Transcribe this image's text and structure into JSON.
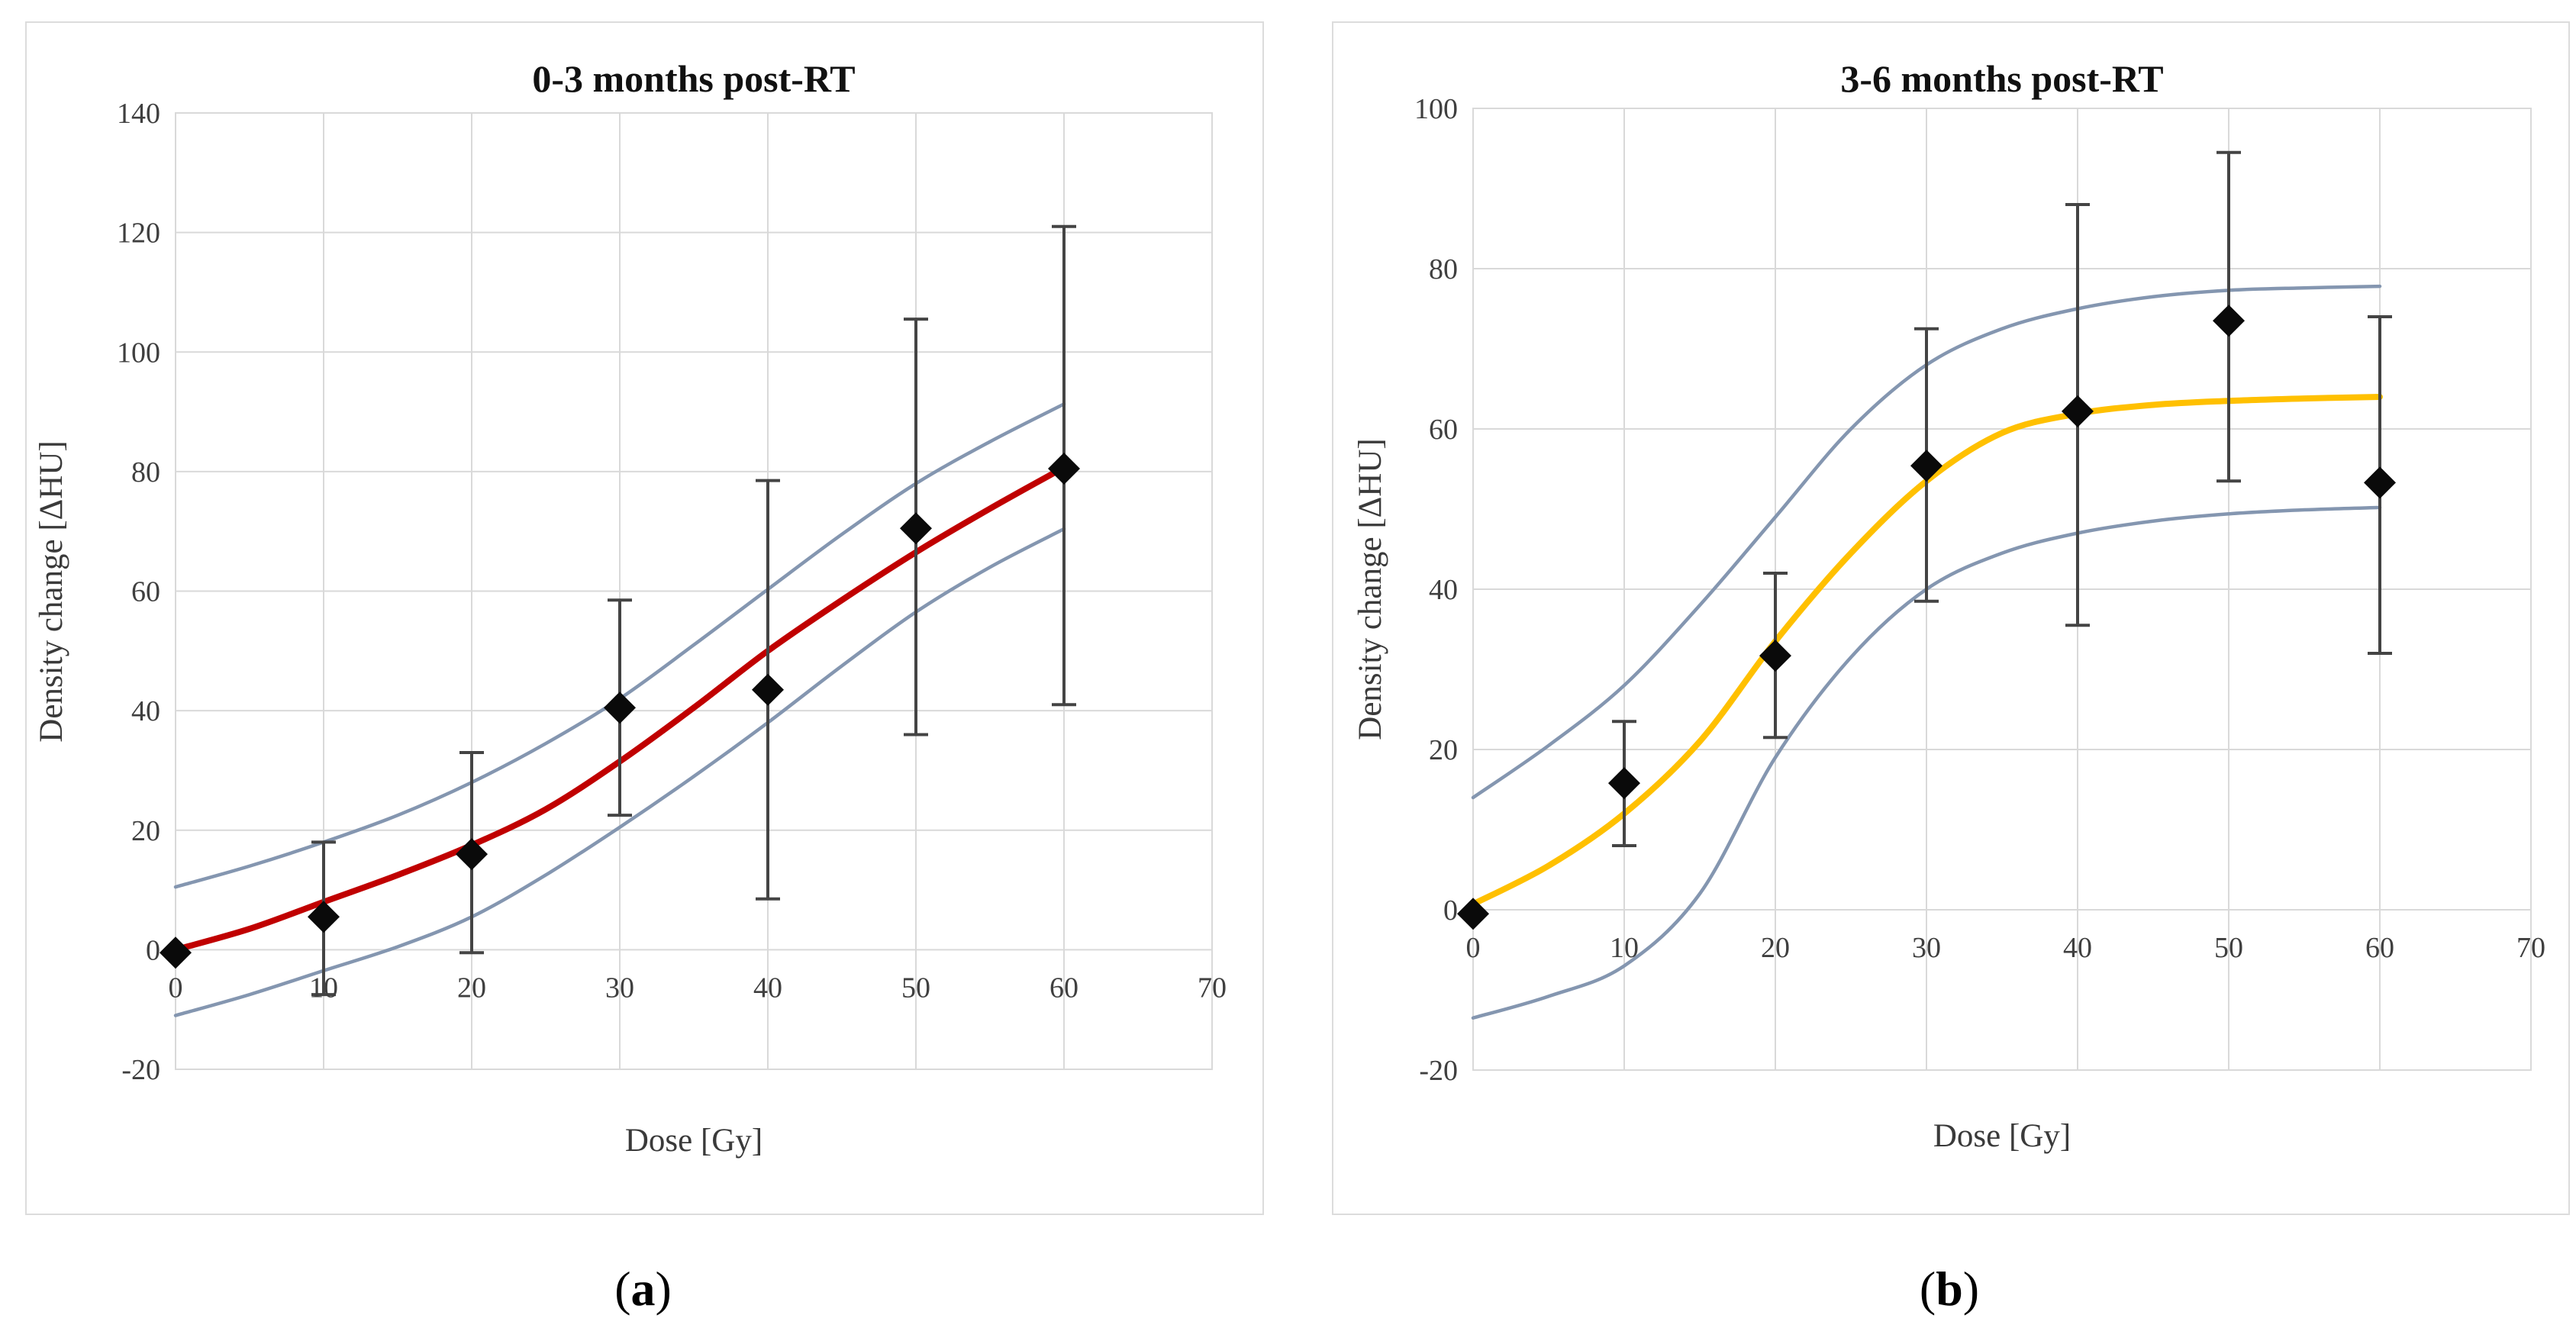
{
  "figure": {
    "captions": [
      {
        "open": "(",
        "letter": "a",
        "close": ")"
      },
      {
        "open": "(",
        "letter": "b",
        "close": ")"
      }
    ]
  },
  "chart_data": [
    {
      "type": "scatter",
      "title": "0-3 months post-RT",
      "xlabel": "Dose [Gy]",
      "ylabel": "Density change [ΔHU]",
      "xlim": [
        0,
        70
      ],
      "ylim": [
        -20,
        140
      ],
      "xticks": [
        0,
        10,
        20,
        30,
        40,
        50,
        60,
        70
      ],
      "yticks": [
        140,
        120,
        100,
        80,
        60,
        40,
        20,
        0,
        -20
      ],
      "grid": true,
      "legend_position": "none",
      "points": {
        "name": "mean density change with error bars",
        "x": [
          0,
          10,
          20,
          30,
          40,
          50,
          60
        ],
        "y": [
          -0.5,
          5.5,
          16,
          40.5,
          43.5,
          70.5,
          80.5
        ],
        "err_lo": [
          null,
          -7.5,
          -0.5,
          22.5,
          8.5,
          36,
          41
        ],
        "err_hi": [
          null,
          18,
          33,
          58.5,
          78.5,
          105.5,
          121
        ]
      },
      "fit_curve": {
        "name": "sigmoid fit",
        "x_start": 0,
        "x_step": 5,
        "y": [
          0,
          3.5,
          8,
          12.5,
          17.5,
          23.5,
          31.5,
          40.5,
          50,
          58.5,
          66.5,
          73.8,
          80.7
        ]
      },
      "ci_upper": {
        "name": "upper confidence band",
        "x_start": 0,
        "x_step": 5,
        "y": [
          10.5,
          14,
          18,
          22.5,
          28,
          34.5,
          42,
          51,
          60.3,
          69.5,
          78,
          85,
          91.3
        ]
      },
      "ci_lower": {
        "name": "lower confidence band",
        "x_start": 0,
        "x_step": 5,
        "y": [
          -11,
          -7.5,
          -3.5,
          0.5,
          5.5,
          12.5,
          20.5,
          29,
          38,
          47.5,
          56.5,
          64,
          70.4
        ]
      },
      "colors": {
        "fit": "#C00000",
        "ci": "#8496B0",
        "marker": "#0a0a0a",
        "error_bar": "#444444",
        "grid": "#D9D9D9",
        "border": "#D9D9D9",
        "tick_text": "#3f3f3f"
      }
    },
    {
      "type": "scatter",
      "title": "3-6 months post-RT",
      "xlabel": "Dose [Gy]",
      "ylabel": "Density change [ΔHU]",
      "xlim": [
        0,
        70
      ],
      "ylim": [
        -20,
        100
      ],
      "xticks": [
        0,
        10,
        20,
        30,
        40,
        50,
        60,
        70
      ],
      "yticks": [
        100,
        80,
        60,
        40,
        20,
        0,
        -20
      ],
      "grid": true,
      "legend_position": "none",
      "points": {
        "name": "mean density change with error bars",
        "x": [
          0,
          10,
          20,
          30,
          40,
          50,
          60
        ],
        "y": [
          -0.5,
          15.8,
          31.7,
          55.4,
          62.2,
          73.5,
          53.3
        ],
        "err_lo": [
          null,
          8,
          21.5,
          38.5,
          35.5,
          53.5,
          32
        ],
        "err_hi": [
          null,
          23.5,
          42,
          72.5,
          88,
          94.5,
          74
        ]
      },
      "fit_curve": {
        "name": "sigmoid fit",
        "x_start": 0,
        "x_step": 5,
        "y": [
          0.7,
          5.5,
          12,
          21,
          33.5,
          44.5,
          53.5,
          59.5,
          61.9,
          63,
          63.5,
          63.8,
          64
        ]
      },
      "ci_upper": {
        "name": "upper confidence band",
        "x_start": 0,
        "x_step": 5,
        "y": [
          14,
          20.5,
          28,
          38,
          49,
          60,
          68,
          72.5,
          75,
          76.5,
          77.3,
          77.6,
          77.8
        ]
      },
      "ci_lower": {
        "name": "lower confidence band",
        "x_start": 0,
        "x_step": 5,
        "y": [
          -13.5,
          -10.8,
          -7,
          2,
          19,
          31.5,
          40,
          44.5,
          47,
          48.5,
          49.4,
          49.9,
          50.2
        ]
      },
      "colors": {
        "fit": "#FFC000",
        "ci": "#8496B0",
        "marker": "#0a0a0a",
        "error_bar": "#444444",
        "grid": "#D9D9D9",
        "border": "#D9D9D9",
        "tick_text": "#3f3f3f"
      }
    }
  ]
}
